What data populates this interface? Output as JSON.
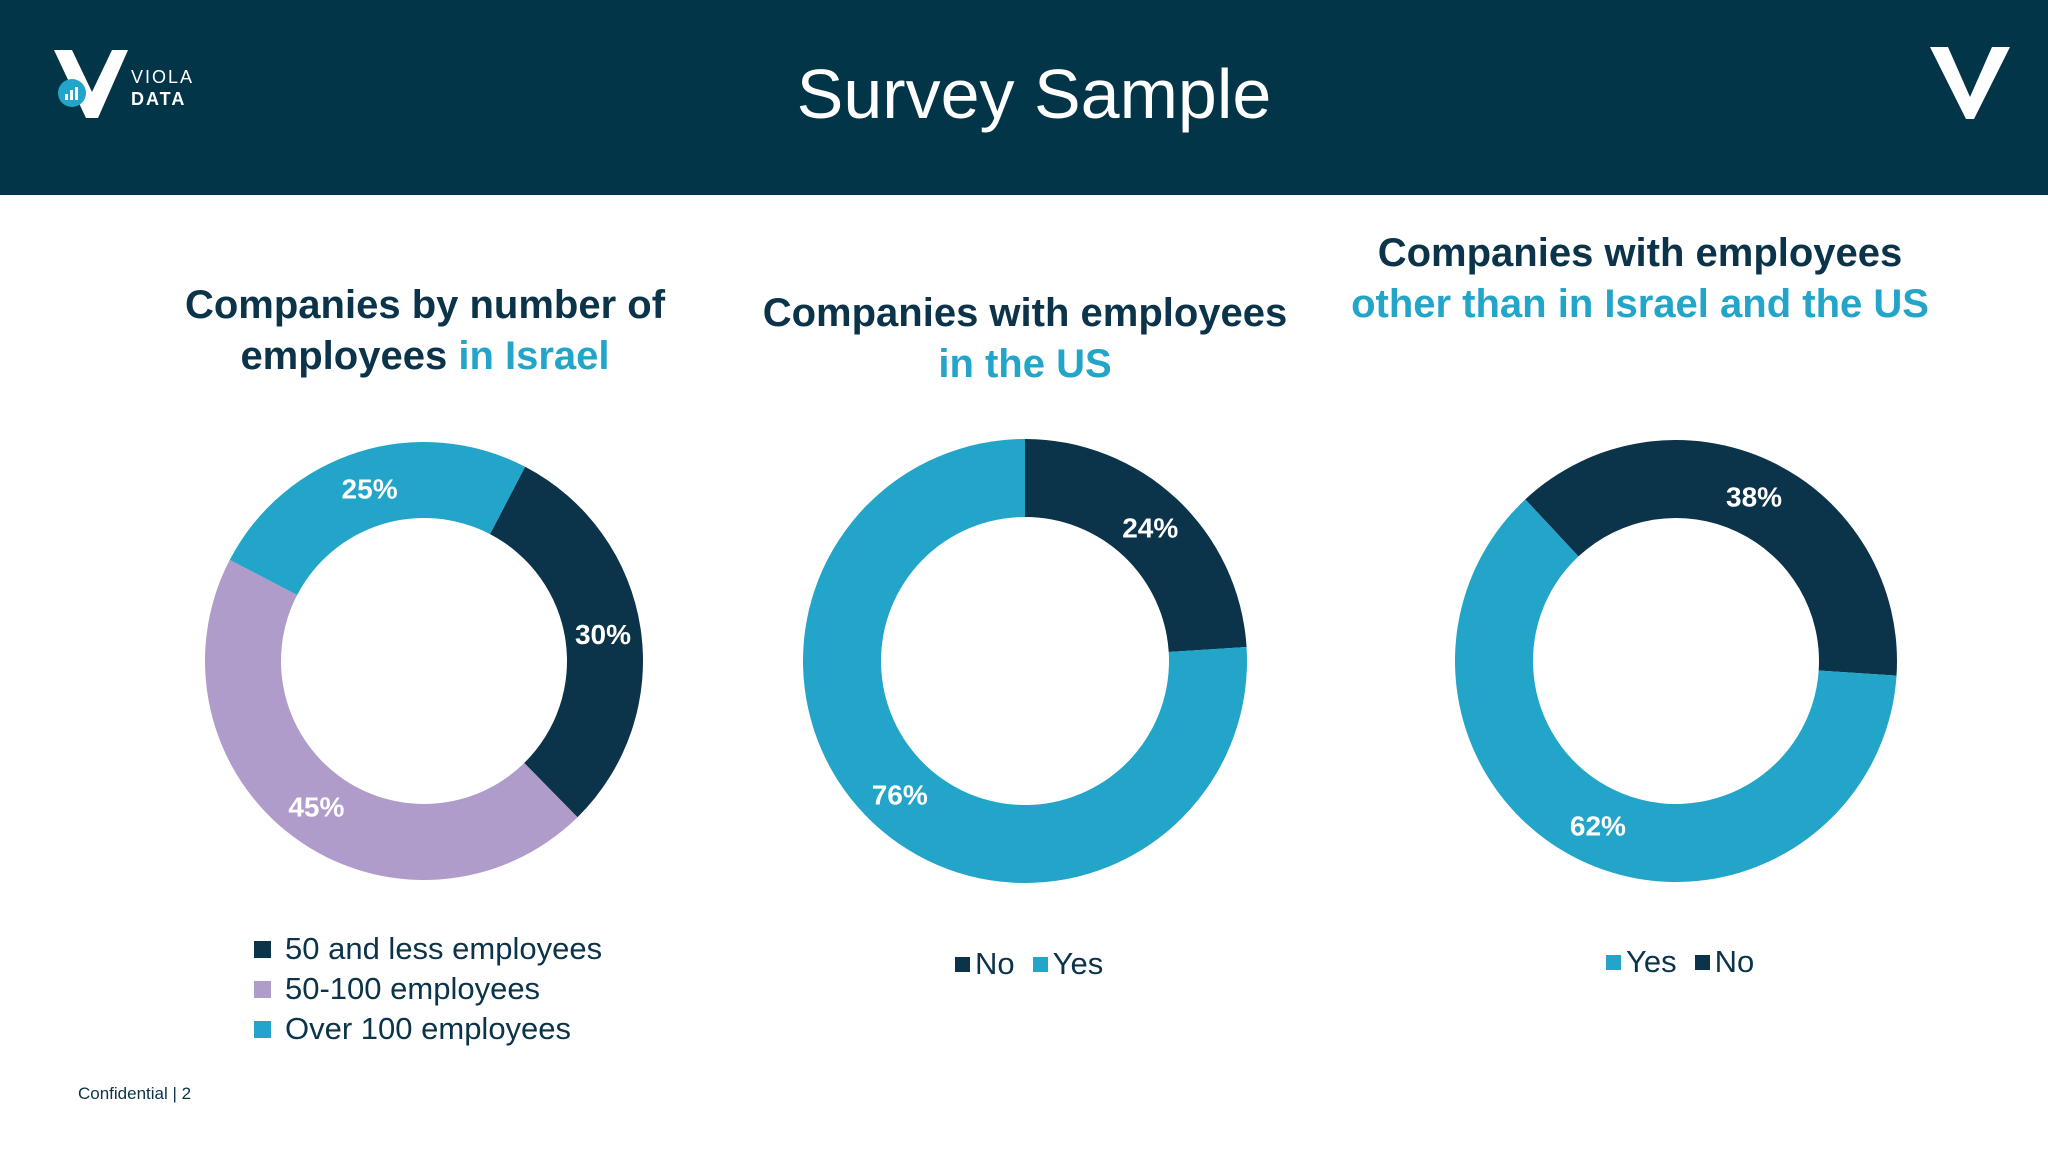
{
  "header": {
    "title": "Survey Sample",
    "brand_line1": "VIOLA",
    "brand_line2": "DATA"
  },
  "footer": {
    "text": "Confidential | 2"
  },
  "colors": {
    "navy": "#0b3349",
    "header_bg": "#033549",
    "teal": "#22a5c9",
    "lavender": "#b09ccb"
  },
  "chart_data": [
    {
      "type": "pie",
      "subtype": "donut",
      "title_main": "Companies by number of employees",
      "title_accent": "in Israel",
      "categories": [
        "50 and less employees",
        "50-100 employees",
        "Over 100 employees"
      ],
      "values": [
        30,
        45,
        25
      ],
      "labels": [
        "30%",
        "45%",
        "25%"
      ],
      "colors": [
        "#0b3349",
        "#b09ccb",
        "#22a5c9"
      ],
      "legend": [
        "50 and less employees",
        "50-100 employees",
        "Over 100 employees"
      ],
      "legend_placement": "bottom"
    },
    {
      "type": "pie",
      "subtype": "donut",
      "title_main": "Companies with employees",
      "title_accent": "in the US",
      "categories": [
        "No",
        "Yes"
      ],
      "values": [
        24,
        76
      ],
      "labels": [
        "24%",
        "76%"
      ],
      "colors": [
        "#0b3349",
        "#22a5c9"
      ],
      "legend": [
        "No",
        "Yes"
      ],
      "legend_placement": "bottom"
    },
    {
      "type": "pie",
      "subtype": "donut",
      "title_main": "Companies with employees",
      "title_accent": "other than in Israel and the US",
      "categories": [
        "No",
        "Yes"
      ],
      "values": [
        38,
        62
      ],
      "labels": [
        "38%",
        "62%"
      ],
      "colors": [
        "#0b3349",
        "#22a5c9"
      ],
      "legend": [
        "Yes",
        "No"
      ],
      "legend_colors": [
        "#22a5c9",
        "#0b3349"
      ],
      "legend_placement": "bottom"
    }
  ]
}
